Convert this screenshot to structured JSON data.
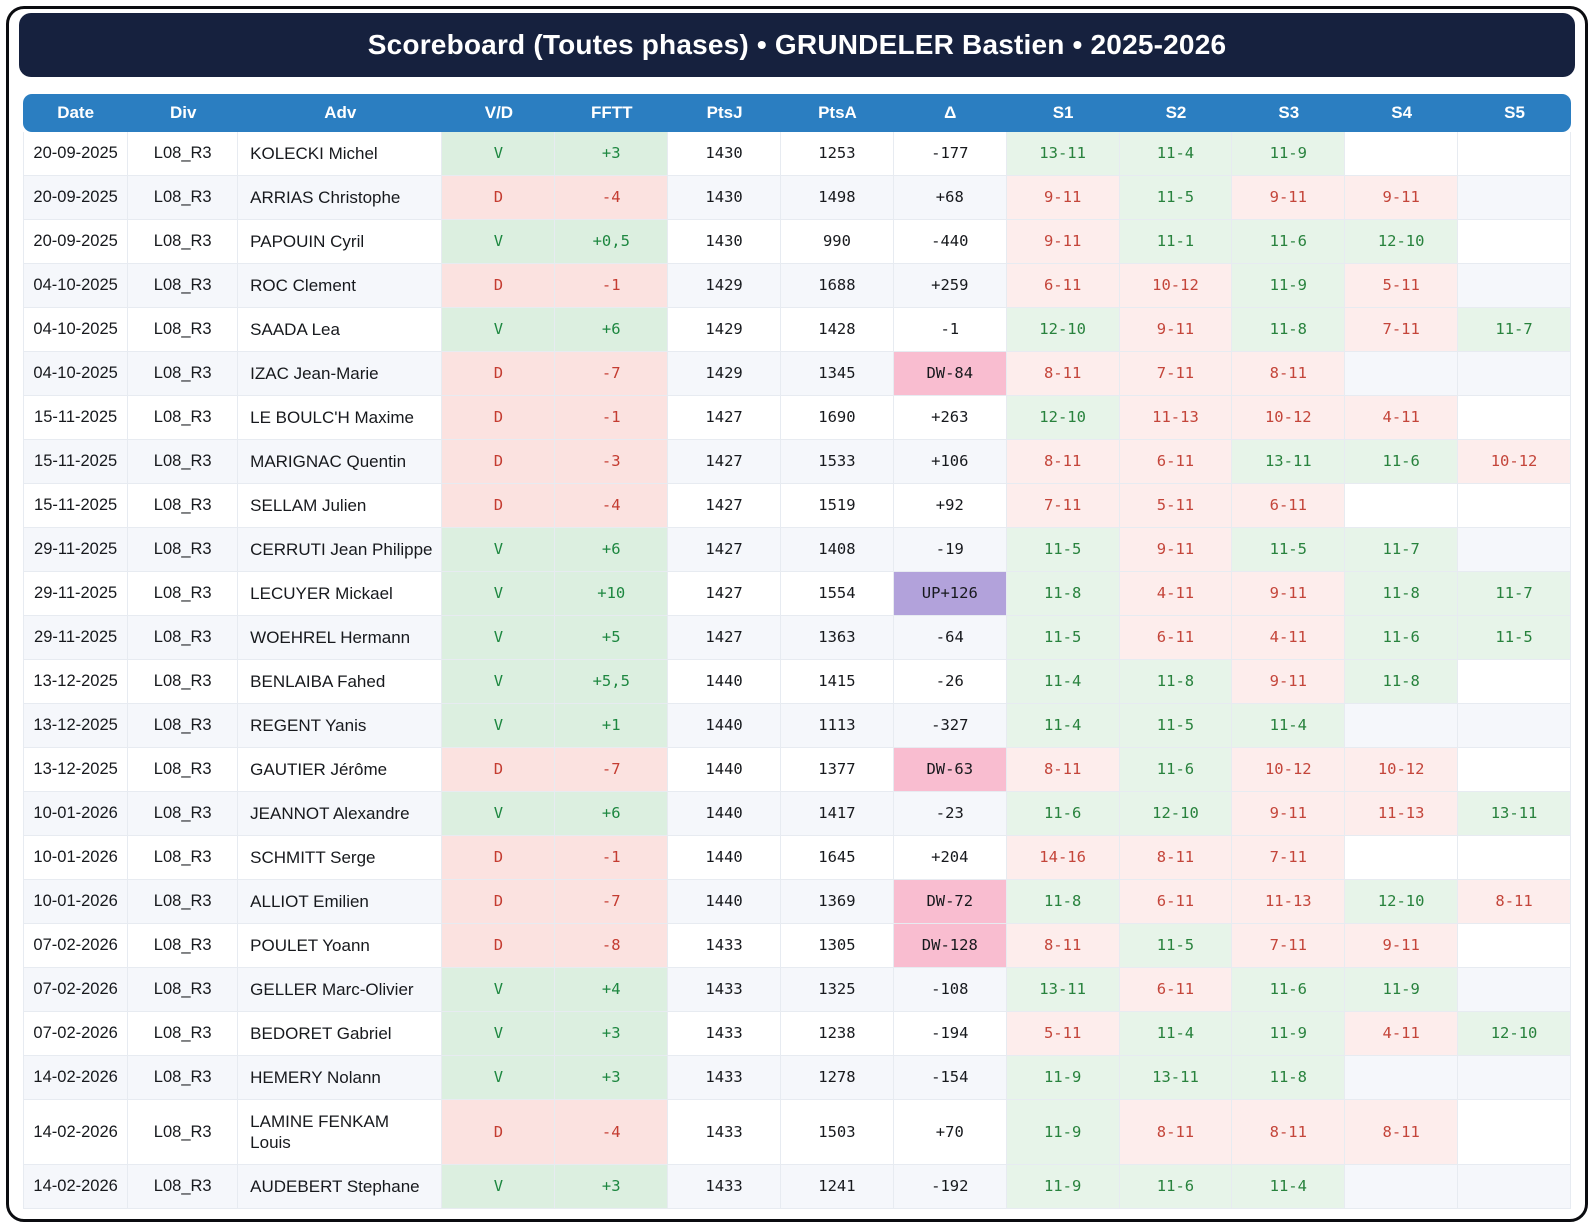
{
  "title": "Scoreboard (Toutes phases) • GRUNDELER Bastien • 2025-2026",
  "columns": [
    "Date",
    "Div",
    "Adv",
    "V/D",
    "FFTT",
    "PtsJ",
    "PtsA",
    "Δ",
    "S1",
    "S2",
    "S3",
    "S4",
    "S5"
  ],
  "colors": {
    "title_bar_navy": "#16213e",
    "header_blue": "#2b7ec1",
    "win_bg": "#dcefe0",
    "win_text": "#1d8740",
    "loss_bg": "#fbe2e0",
    "loss_text": "#c43c31",
    "set_win_bg": "#e7f4e9",
    "set_win_text": "#28823d",
    "set_loss_bg": "#fdedec",
    "set_loss_text": "#c4453a",
    "down_badge_pink": "#f9bdd0",
    "up_badge_purple": "#b2a2db",
    "row_stripe": "#f5f7fb"
  },
  "rows": [
    {
      "date": "20-09-2025",
      "div": "L08_R3",
      "adv": "KOLECKI Michel",
      "vd": "V",
      "fftt": "+3",
      "ptsj": "1430",
      "ptsa": "1253",
      "delta": "-177",
      "delta_type": "normal",
      "sets": [
        {
          "score": "13-11",
          "result": "w"
        },
        {
          "score": "11-4",
          "result": "w"
        },
        {
          "score": "11-9",
          "result": "w"
        },
        null,
        null
      ]
    },
    {
      "date": "20-09-2025",
      "div": "L08_R3",
      "adv": "ARRIAS Christophe",
      "vd": "D",
      "fftt": "-4",
      "ptsj": "1430",
      "ptsa": "1498",
      "delta": "+68",
      "delta_type": "normal",
      "sets": [
        {
          "score": "9-11",
          "result": "l"
        },
        {
          "score": "11-5",
          "result": "w"
        },
        {
          "score": "9-11",
          "result": "l"
        },
        {
          "score": "9-11",
          "result": "l"
        },
        null
      ]
    },
    {
      "date": "20-09-2025",
      "div": "L08_R3",
      "adv": "PAPOUIN Cyril",
      "vd": "V",
      "fftt": "+0,5",
      "ptsj": "1430",
      "ptsa": "990",
      "delta": "-440",
      "delta_type": "normal",
      "sets": [
        {
          "score": "9-11",
          "result": "l"
        },
        {
          "score": "11-1",
          "result": "w"
        },
        {
          "score": "11-6",
          "result": "w"
        },
        {
          "score": "12-10",
          "result": "w"
        },
        null
      ]
    },
    {
      "date": "04-10-2025",
      "div": "L08_R3",
      "adv": "ROC Clement",
      "vd": "D",
      "fftt": "-1",
      "ptsj": "1429",
      "ptsa": "1688",
      "delta": "+259",
      "delta_type": "normal",
      "sets": [
        {
          "score": "6-11",
          "result": "l"
        },
        {
          "score": "10-12",
          "result": "l"
        },
        {
          "score": "11-9",
          "result": "w"
        },
        {
          "score": "5-11",
          "result": "l"
        },
        null
      ]
    },
    {
      "date": "04-10-2025",
      "div": "L08_R3",
      "adv": "SAADA Lea",
      "vd": "V",
      "fftt": "+6",
      "ptsj": "1429",
      "ptsa": "1428",
      "delta": "-1",
      "delta_type": "normal",
      "sets": [
        {
          "score": "12-10",
          "result": "w"
        },
        {
          "score": "9-11",
          "result": "l"
        },
        {
          "score": "11-8",
          "result": "w"
        },
        {
          "score": "7-11",
          "result": "l"
        },
        {
          "score": "11-7",
          "result": "w"
        }
      ]
    },
    {
      "date": "04-10-2025",
      "div": "L08_R3",
      "adv": "IZAC Jean-Marie",
      "vd": "D",
      "fftt": "-7",
      "ptsj": "1429",
      "ptsa": "1345",
      "delta": "DW-84",
      "delta_type": "dw",
      "sets": [
        {
          "score": "8-11",
          "result": "l"
        },
        {
          "score": "7-11",
          "result": "l"
        },
        {
          "score": "8-11",
          "result": "l"
        },
        null,
        null
      ]
    },
    {
      "date": "15-11-2025",
      "div": "L08_R3",
      "adv": "LE BOULC'H Maxime",
      "vd": "D",
      "fftt": "-1",
      "ptsj": "1427",
      "ptsa": "1690",
      "delta": "+263",
      "delta_type": "normal",
      "sets": [
        {
          "score": "12-10",
          "result": "w"
        },
        {
          "score": "11-13",
          "result": "l"
        },
        {
          "score": "10-12",
          "result": "l"
        },
        {
          "score": "4-11",
          "result": "l"
        },
        null
      ]
    },
    {
      "date": "15-11-2025",
      "div": "L08_R3",
      "adv": "MARIGNAC Quentin",
      "vd": "D",
      "fftt": "-3",
      "ptsj": "1427",
      "ptsa": "1533",
      "delta": "+106",
      "delta_type": "normal",
      "sets": [
        {
          "score": "8-11",
          "result": "l"
        },
        {
          "score": "6-11",
          "result": "l"
        },
        {
          "score": "13-11",
          "result": "w"
        },
        {
          "score": "11-6",
          "result": "w"
        },
        {
          "score": "10-12",
          "result": "l"
        }
      ]
    },
    {
      "date": "15-11-2025",
      "div": "L08_R3",
      "adv": "SELLAM Julien",
      "vd": "D",
      "fftt": "-4",
      "ptsj": "1427",
      "ptsa": "1519",
      "delta": "+92",
      "delta_type": "normal",
      "sets": [
        {
          "score": "7-11",
          "result": "l"
        },
        {
          "score": "5-11",
          "result": "l"
        },
        {
          "score": "6-11",
          "result": "l"
        },
        null,
        null
      ]
    },
    {
      "date": "29-11-2025",
      "div": "L08_R3",
      "adv": "CERRUTI Jean Philippe",
      "vd": "V",
      "fftt": "+6",
      "ptsj": "1427",
      "ptsa": "1408",
      "delta": "-19",
      "delta_type": "normal",
      "sets": [
        {
          "score": "11-5",
          "result": "w"
        },
        {
          "score": "9-11",
          "result": "l"
        },
        {
          "score": "11-5",
          "result": "w"
        },
        {
          "score": "11-7",
          "result": "w"
        },
        null
      ]
    },
    {
      "date": "29-11-2025",
      "div": "L08_R3",
      "adv": "LECUYER Mickael",
      "vd": "V",
      "fftt": "+10",
      "ptsj": "1427",
      "ptsa": "1554",
      "delta": "UP+126",
      "delta_type": "up",
      "sets": [
        {
          "score": "11-8",
          "result": "w"
        },
        {
          "score": "4-11",
          "result": "l"
        },
        {
          "score": "9-11",
          "result": "l"
        },
        {
          "score": "11-8",
          "result": "w"
        },
        {
          "score": "11-7",
          "result": "w"
        }
      ]
    },
    {
      "date": "29-11-2025",
      "div": "L08_R3",
      "adv": "WOEHREL Hermann",
      "vd": "V",
      "fftt": "+5",
      "ptsj": "1427",
      "ptsa": "1363",
      "delta": "-64",
      "delta_type": "normal",
      "sets": [
        {
          "score": "11-5",
          "result": "w"
        },
        {
          "score": "6-11",
          "result": "l"
        },
        {
          "score": "4-11",
          "result": "l"
        },
        {
          "score": "11-6",
          "result": "w"
        },
        {
          "score": "11-5",
          "result": "w"
        }
      ]
    },
    {
      "date": "13-12-2025",
      "div": "L08_R3",
      "adv": "BENLAIBA Fahed",
      "vd": "V",
      "fftt": "+5,5",
      "ptsj": "1440",
      "ptsa": "1415",
      "delta": "-26",
      "delta_type": "normal",
      "sets": [
        {
          "score": "11-4",
          "result": "w"
        },
        {
          "score": "11-8",
          "result": "w"
        },
        {
          "score": "9-11",
          "result": "l"
        },
        {
          "score": "11-8",
          "result": "w"
        },
        null
      ]
    },
    {
      "date": "13-12-2025",
      "div": "L08_R3",
      "adv": "REGENT Yanis",
      "vd": "V",
      "fftt": "+1",
      "ptsj": "1440",
      "ptsa": "1113",
      "delta": "-327",
      "delta_type": "normal",
      "sets": [
        {
          "score": "11-4",
          "result": "w"
        },
        {
          "score": "11-5",
          "result": "w"
        },
        {
          "score": "11-4",
          "result": "w"
        },
        null,
        null
      ]
    },
    {
      "date": "13-12-2025",
      "div": "L08_R3",
      "adv": "GAUTIER Jérôme",
      "vd": "D",
      "fftt": "-7",
      "ptsj": "1440",
      "ptsa": "1377",
      "delta": "DW-63",
      "delta_type": "dw",
      "sets": [
        {
          "score": "8-11",
          "result": "l"
        },
        {
          "score": "11-6",
          "result": "w"
        },
        {
          "score": "10-12",
          "result": "l"
        },
        {
          "score": "10-12",
          "result": "l"
        },
        null
      ]
    },
    {
      "date": "10-01-2026",
      "div": "L08_R3",
      "adv": "JEANNOT Alexandre",
      "vd": "V",
      "fftt": "+6",
      "ptsj": "1440",
      "ptsa": "1417",
      "delta": "-23",
      "delta_type": "normal",
      "sets": [
        {
          "score": "11-6",
          "result": "w"
        },
        {
          "score": "12-10",
          "result": "w"
        },
        {
          "score": "9-11",
          "result": "l"
        },
        {
          "score": "11-13",
          "result": "l"
        },
        {
          "score": "13-11",
          "result": "w"
        }
      ]
    },
    {
      "date": "10-01-2026",
      "div": "L08_R3",
      "adv": "SCHMITT Serge",
      "vd": "D",
      "fftt": "-1",
      "ptsj": "1440",
      "ptsa": "1645",
      "delta": "+204",
      "delta_type": "normal",
      "sets": [
        {
          "score": "14-16",
          "result": "l"
        },
        {
          "score": "8-11",
          "result": "l"
        },
        {
          "score": "7-11",
          "result": "l"
        },
        null,
        null
      ]
    },
    {
      "date": "10-01-2026",
      "div": "L08_R3",
      "adv": "ALLIOT Emilien",
      "vd": "D",
      "fftt": "-7",
      "ptsj": "1440",
      "ptsa": "1369",
      "delta": "DW-72",
      "delta_type": "dw",
      "sets": [
        {
          "score": "11-8",
          "result": "w"
        },
        {
          "score": "6-11",
          "result": "l"
        },
        {
          "score": "11-13",
          "result": "l"
        },
        {
          "score": "12-10",
          "result": "w"
        },
        {
          "score": "8-11",
          "result": "l"
        }
      ]
    },
    {
      "date": "07-02-2026",
      "div": "L08_R3",
      "adv": "POULET Yoann",
      "vd": "D",
      "fftt": "-8",
      "ptsj": "1433",
      "ptsa": "1305",
      "delta": "DW-128",
      "delta_type": "dw",
      "sets": [
        {
          "score": "8-11",
          "result": "l"
        },
        {
          "score": "11-5",
          "result": "w"
        },
        {
          "score": "7-11",
          "result": "l"
        },
        {
          "score": "9-11",
          "result": "l"
        },
        null
      ]
    },
    {
      "date": "07-02-2026",
      "div": "L08_R3",
      "adv": "GELLER Marc-Olivier",
      "vd": "V",
      "fftt": "+4",
      "ptsj": "1433",
      "ptsa": "1325",
      "delta": "-108",
      "delta_type": "normal",
      "sets": [
        {
          "score": "13-11",
          "result": "w"
        },
        {
          "score": "6-11",
          "result": "l"
        },
        {
          "score": "11-6",
          "result": "w"
        },
        {
          "score": "11-9",
          "result": "w"
        },
        null
      ]
    },
    {
      "date": "07-02-2026",
      "div": "L08_R3",
      "adv": "BEDORET Gabriel",
      "vd": "V",
      "fftt": "+3",
      "ptsj": "1433",
      "ptsa": "1238",
      "delta": "-194",
      "delta_type": "normal",
      "sets": [
        {
          "score": "5-11",
          "result": "l"
        },
        {
          "score": "11-4",
          "result": "w"
        },
        {
          "score": "11-9",
          "result": "w"
        },
        {
          "score": "4-11",
          "result": "l"
        },
        {
          "score": "12-10",
          "result": "w"
        }
      ]
    },
    {
      "date": "14-02-2026",
      "div": "L08_R3",
      "adv": "HEMERY Nolann",
      "vd": "V",
      "fftt": "+3",
      "ptsj": "1433",
      "ptsa": "1278",
      "delta": "-154",
      "delta_type": "normal",
      "sets": [
        {
          "score": "11-9",
          "result": "w"
        },
        {
          "score": "13-11",
          "result": "w"
        },
        {
          "score": "11-8",
          "result": "w"
        },
        null,
        null
      ]
    },
    {
      "date": "14-02-2026",
      "div": "L08_R3",
      "adv": "LAMINE FENKAM Louis",
      "vd": "D",
      "fftt": "-4",
      "ptsj": "1433",
      "ptsa": "1503",
      "delta": "+70",
      "delta_type": "normal",
      "sets": [
        {
          "score": "11-9",
          "result": "w"
        },
        {
          "score": "8-11",
          "result": "l"
        },
        {
          "score": "8-11",
          "result": "l"
        },
        {
          "score": "8-11",
          "result": "l"
        },
        null
      ]
    },
    {
      "date": "14-02-2026",
      "div": "L08_R3",
      "adv": "AUDEBERT Stephane",
      "vd": "V",
      "fftt": "+3",
      "ptsj": "1433",
      "ptsa": "1241",
      "delta": "-192",
      "delta_type": "normal",
      "sets": [
        {
          "score": "11-9",
          "result": "w"
        },
        {
          "score": "11-6",
          "result": "w"
        },
        {
          "score": "11-4",
          "result": "w"
        },
        null,
        null
      ]
    }
  ]
}
